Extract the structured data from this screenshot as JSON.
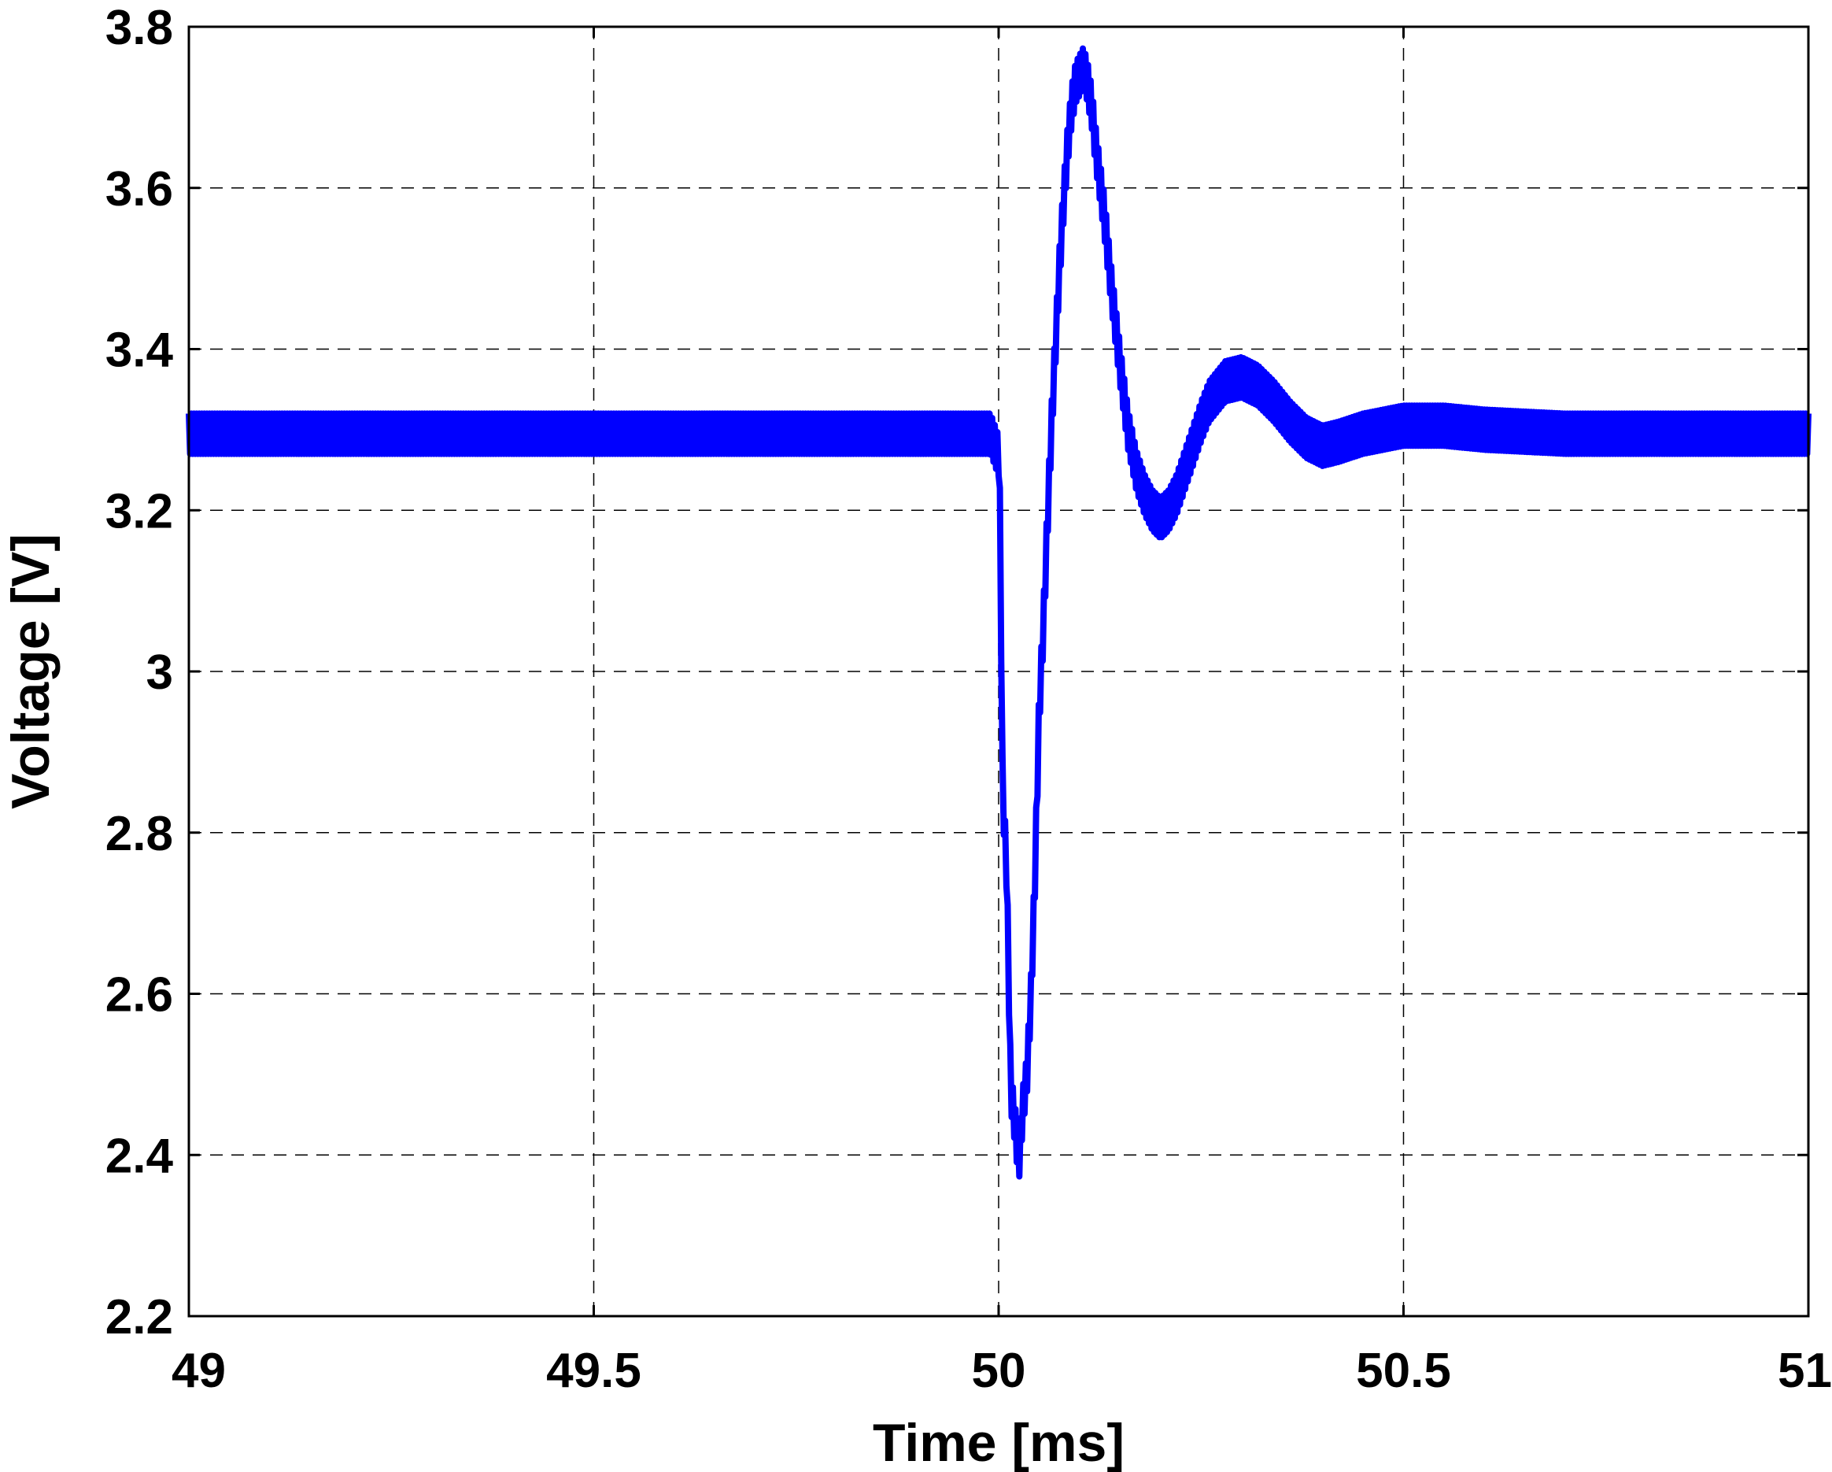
{
  "chart_data": {
    "type": "line",
    "title": "",
    "xlabel": "Time [ms]",
    "ylabel": "Voltage [V]",
    "xlim": [
      49,
      51
    ],
    "ylim": [
      2.2,
      3.8
    ],
    "xticks": [
      49,
      49.5,
      50,
      50.5,
      51
    ],
    "xtick_labels": [
      "49",
      "49.5",
      "50",
      "50.5",
      "51"
    ],
    "yticks": [
      2.2,
      2.4,
      2.6,
      2.8,
      3.0,
      3.2,
      3.4,
      3.6,
      3.8
    ],
    "ytick_labels": [
      "2.2",
      "2.4",
      "2.6",
      "2.8",
      "3",
      "3.2",
      "3.4",
      "3.6",
      "3.8"
    ],
    "grid": true,
    "grid_style": "dashed",
    "legend": "none",
    "series": [
      {
        "color": "#0000ff",
        "ripple_amplitude": 0.025,
        "x": [
          49.0,
          49.2,
          49.4,
          49.6,
          49.8,
          49.99,
          50.001,
          50.005,
          50.01,
          50.015,
          50.02,
          50.025,
          50.03,
          50.035,
          50.04,
          50.045,
          50.05,
          50.055,
          50.06,
          50.065,
          50.07,
          50.075,
          50.08,
          50.085,
          50.09,
          50.095,
          50.1,
          50.105,
          50.11,
          50.115,
          50.12,
          50.13,
          50.14,
          50.15,
          50.16,
          50.17,
          50.18,
          50.19,
          50.2,
          50.21,
          50.22,
          50.23,
          50.24,
          50.25,
          50.26,
          50.28,
          50.3,
          50.32,
          50.34,
          50.36,
          50.38,
          50.4,
          50.42,
          50.45,
          50.5,
          50.55,
          50.6,
          50.7,
          50.8,
          50.9,
          51.0
        ],
        "y": [
          3.295,
          3.295,
          3.295,
          3.295,
          3.295,
          3.295,
          3.265,
          2.85,
          2.75,
          2.48,
          2.44,
          2.39,
          2.46,
          2.5,
          2.6,
          2.75,
          2.95,
          3.05,
          3.18,
          3.3,
          3.4,
          3.5,
          3.58,
          3.65,
          3.7,
          3.73,
          3.74,
          3.75,
          3.73,
          3.7,
          3.65,
          3.57,
          3.47,
          3.38,
          3.3,
          3.25,
          3.22,
          3.2,
          3.19,
          3.2,
          3.22,
          3.25,
          3.28,
          3.31,
          3.335,
          3.36,
          3.365,
          3.355,
          3.335,
          3.31,
          3.29,
          3.28,
          3.285,
          3.295,
          3.305,
          3.305,
          3.3,
          3.295,
          3.295,
          3.295,
          3.295
        ]
      }
    ]
  }
}
